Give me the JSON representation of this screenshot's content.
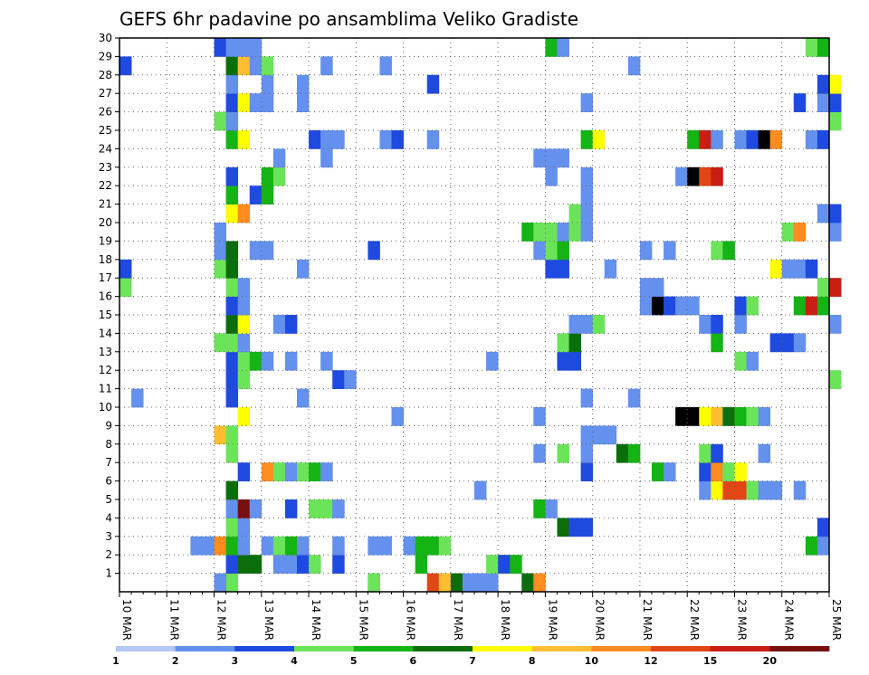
{
  "chart_data": {
    "type": "heatmap",
    "title": "GEFS 6hr padavine po ansamblima Veliko Gradiste",
    "xlabel": "",
    "ylabel": "",
    "x_ticks": [
      "10 MAR",
      "11 MAR",
      "12 MAR",
      "13 MAR",
      "14 MAR",
      "15 MAR",
      "16 MAR",
      "17 MAR",
      "18 MAR",
      "19 MAR",
      "20 MAR",
      "21 MAR",
      "22 MAR",
      "23 MAR",
      "24 MAR",
      "25 MAR"
    ],
    "y_ticks": [
      1,
      2,
      3,
      4,
      5,
      6,
      7,
      8,
      9,
      10,
      11,
      12,
      13,
      14,
      15,
      16,
      17,
      18,
      19,
      20,
      21,
      22,
      23,
      24,
      25,
      26,
      27,
      28,
      29,
      30
    ],
    "ylim": [
      0,
      30
    ],
    "time_step_hours": 6,
    "grid": true,
    "colorbar": {
      "levels": [
        1,
        2,
        3,
        4,
        5,
        6,
        7,
        8,
        10,
        12,
        15,
        20
      ],
      "colors": [
        "#b4c8f5",
        "#6490ee",
        "#1e4ae0",
        "#6ce45a",
        "#14b414",
        "#0b6e0b",
        "#ffff00",
        "#ffbe32",
        "#ff8c1e",
        "#e14614",
        "#c81e14",
        "#781010"
      ],
      "placement": "bottom"
    },
    "cells": [
      [
        9,
        0,
        2
      ],
      [
        9,
        0,
        3
      ],
      [
        8,
        0,
        1
      ],
      [
        21,
        0,
        2
      ],
      [
        21,
        0,
        3
      ],
      [
        26,
        0,
        9
      ],
      [
        27,
        0,
        7
      ],
      [
        28,
        0,
        5
      ],
      [
        29,
        0,
        1
      ],
      [
        30,
        0,
        1
      ],
      [
        31,
        0,
        1
      ],
      [
        34,
        0,
        5
      ],
      [
        35,
        0,
        8
      ],
      [
        9,
        1,
        2
      ],
      [
        10,
        1,
        5
      ],
      [
        11,
        1,
        5
      ],
      [
        13,
        1,
        1
      ],
      [
        14,
        1,
        1
      ],
      [
        15,
        1,
        2
      ],
      [
        16,
        1,
        3
      ],
      [
        18,
        1,
        2
      ],
      [
        25,
        1,
        4
      ],
      [
        31,
        1,
        3
      ],
      [
        32,
        1,
        2
      ],
      [
        33,
        1,
        4
      ],
      [
        6,
        2,
        1
      ],
      [
        7,
        2,
        1
      ],
      [
        8,
        2,
        8
      ],
      [
        9,
        2,
        4
      ],
      [
        10,
        2,
        1
      ],
      [
        12,
        2,
        1
      ],
      [
        13,
        2,
        3
      ],
      [
        14,
        2,
        4
      ],
      [
        15,
        2,
        1
      ],
      [
        18,
        2,
        1
      ],
      [
        21,
        2,
        1
      ],
      [
        22,
        2,
        1
      ],
      [
        24,
        2,
        1
      ],
      [
        25,
        2,
        4
      ],
      [
        26,
        2,
        4
      ],
      [
        27,
        2,
        3
      ],
      [
        58,
        2,
        4
      ],
      [
        59,
        2,
        1
      ],
      [
        9,
        3,
        3
      ],
      [
        10,
        3,
        1
      ],
      [
        37,
        3,
        5
      ],
      [
        38,
        3,
        2
      ],
      [
        39,
        3,
        2
      ],
      [
        59,
        3,
        2
      ],
      [
        9,
        4,
        1
      ],
      [
        10,
        4,
        11
      ],
      [
        11,
        4,
        1
      ],
      [
        14,
        4,
        2
      ],
      [
        16,
        4,
        3
      ],
      [
        17,
        4,
        3
      ],
      [
        18,
        4,
        1
      ],
      [
        35,
        4,
        4
      ],
      [
        36,
        4,
        1
      ],
      [
        9,
        5,
        5
      ],
      [
        30,
        5,
        1
      ],
      [
        49,
        5,
        1
      ],
      [
        50,
        5,
        6
      ],
      [
        51,
        5,
        9
      ],
      [
        52,
        5,
        9
      ],
      [
        53,
        5,
        3
      ],
      [
        54,
        5,
        1
      ],
      [
        55,
        5,
        1
      ],
      [
        57,
        5,
        1
      ],
      [
        10,
        6,
        2
      ],
      [
        12,
        6,
        8
      ],
      [
        13,
        6,
        3
      ],
      [
        14,
        6,
        1
      ],
      [
        15,
        6,
        3
      ],
      [
        16,
        6,
        4
      ],
      [
        17,
        6,
        1
      ],
      [
        39,
        6,
        2
      ],
      [
        45,
        6,
        4
      ],
      [
        46,
        6,
        1
      ],
      [
        49,
        6,
        2
      ],
      [
        50,
        6,
        8
      ],
      [
        51,
        6,
        3
      ],
      [
        52,
        6,
        6
      ],
      [
        9,
        7,
        3
      ],
      [
        35,
        7,
        1
      ],
      [
        37,
        7,
        3
      ],
      [
        39,
        7,
        1
      ],
      [
        42,
        7,
        5
      ],
      [
        43,
        7,
        4
      ],
      [
        49,
        7,
        3
      ],
      [
        50,
        7,
        2
      ],
      [
        54,
        7,
        1
      ],
      [
        8,
        8,
        7
      ],
      [
        9,
        8,
        3
      ],
      [
        39,
        8,
        1
      ],
      [
        40,
        8,
        1
      ],
      [
        41,
        8,
        1
      ],
      [
        10,
        9,
        6
      ],
      [
        23,
        9,
        1
      ],
      [
        35,
        9,
        1
      ],
      [
        47,
        9,
        12
      ],
      [
        48,
        9,
        12
      ],
      [
        49,
        9,
        6
      ],
      [
        50,
        9,
        7
      ],
      [
        51,
        9,
        5
      ],
      [
        52,
        9,
        4
      ],
      [
        53,
        9,
        3
      ],
      [
        54,
        9,
        1
      ],
      [
        1,
        10,
        1
      ],
      [
        9,
        10,
        2
      ],
      [
        15,
        10,
        1
      ],
      [
        39,
        10,
        1
      ],
      [
        43,
        10,
        1
      ],
      [
        9,
        11,
        2
      ],
      [
        10,
        11,
        3
      ],
      [
        18,
        11,
        2
      ],
      [
        19,
        11,
        1
      ],
      [
        60,
        11,
        3
      ],
      [
        9,
        12,
        2
      ],
      [
        10,
        12,
        3
      ],
      [
        11,
        12,
        4
      ],
      [
        12,
        12,
        1
      ],
      [
        14,
        12,
        1
      ],
      [
        17,
        12,
        1
      ],
      [
        31,
        12,
        1
      ],
      [
        37,
        12,
        2
      ],
      [
        38,
        12,
        2
      ],
      [
        52,
        12,
        3
      ],
      [
        53,
        12,
        1
      ],
      [
        8,
        13,
        3
      ],
      [
        9,
        13,
        3
      ],
      [
        10,
        13,
        1
      ],
      [
        37,
        13,
        3
      ],
      [
        38,
        13,
        5
      ],
      [
        50,
        13,
        4
      ],
      [
        55,
        13,
        2
      ],
      [
        56,
        13,
        2
      ],
      [
        57,
        13,
        1
      ],
      [
        9,
        14,
        5
      ],
      [
        10,
        14,
        6
      ],
      [
        13,
        14,
        1
      ],
      [
        14,
        14,
        2
      ],
      [
        38,
        14,
        1
      ],
      [
        39,
        14,
        1
      ],
      [
        40,
        14,
        3
      ],
      [
        49,
        14,
        1
      ],
      [
        50,
        14,
        2
      ],
      [
        52,
        14,
        1
      ],
      [
        60,
        14,
        1
      ],
      [
        9,
        15,
        2
      ],
      [
        10,
        15,
        1
      ],
      [
        44,
        15,
        1
      ],
      [
        45,
        15,
        12
      ],
      [
        46,
        15,
        2
      ],
      [
        47,
        15,
        1
      ],
      [
        48,
        15,
        1
      ],
      [
        52,
        15,
        2
      ],
      [
        53,
        15,
        3
      ],
      [
        57,
        15,
        4
      ],
      [
        58,
        15,
        10
      ],
      [
        59,
        15,
        4
      ],
      [
        0,
        16,
        3
      ],
      [
        9,
        16,
        3
      ],
      [
        10,
        16,
        1
      ],
      [
        44,
        16,
        1
      ],
      [
        45,
        16,
        1
      ],
      [
        59,
        16,
        3
      ],
      [
        60,
        16,
        10
      ],
      [
        0,
        17,
        2
      ],
      [
        8,
        17,
        3
      ],
      [
        9,
        17,
        5
      ],
      [
        15,
        17,
        1
      ],
      [
        36,
        17,
        2
      ],
      [
        37,
        17,
        2
      ],
      [
        41,
        17,
        1
      ],
      [
        55,
        17,
        6
      ],
      [
        56,
        17,
        1
      ],
      [
        57,
        17,
        1
      ],
      [
        58,
        17,
        2
      ],
      [
        8,
        18,
        1
      ],
      [
        9,
        18,
        5
      ],
      [
        11,
        18,
        1
      ],
      [
        12,
        18,
        1
      ],
      [
        21,
        18,
        2
      ],
      [
        35,
        18,
        1
      ],
      [
        36,
        18,
        3
      ],
      [
        37,
        18,
        4
      ],
      [
        44,
        18,
        1
      ],
      [
        46,
        18,
        1
      ],
      [
        50,
        18,
        3
      ],
      [
        51,
        18,
        4
      ],
      [
        8,
        19,
        1
      ],
      [
        34,
        19,
        4
      ],
      [
        35,
        19,
        3
      ],
      [
        36,
        19,
        3
      ],
      [
        37,
        19,
        1
      ],
      [
        38,
        19,
        3
      ],
      [
        39,
        19,
        1
      ],
      [
        56,
        19,
        3
      ],
      [
        57,
        19,
        8
      ],
      [
        60,
        19,
        1
      ],
      [
        9,
        20,
        6
      ],
      [
        10,
        20,
        8
      ],
      [
        38,
        20,
        3
      ],
      [
        39,
        20,
        1
      ],
      [
        59,
        20,
        1
      ],
      [
        60,
        20,
        2
      ],
      [
        9,
        21,
        4
      ],
      [
        11,
        21,
        2
      ],
      [
        12,
        21,
        4
      ],
      [
        39,
        21,
        1
      ],
      [
        9,
        22,
        2
      ],
      [
        12,
        22,
        4
      ],
      [
        13,
        22,
        3
      ],
      [
        36,
        22,
        1
      ],
      [
        39,
        22,
        1
      ],
      [
        47,
        22,
        1
      ],
      [
        48,
        22,
        12
      ],
      [
        49,
        22,
        9
      ],
      [
        50,
        22,
        10
      ],
      [
        13,
        23,
        1
      ],
      [
        17,
        23,
        1
      ],
      [
        35,
        23,
        1
      ],
      [
        36,
        23,
        1
      ],
      [
        37,
        23,
        1
      ],
      [
        9,
        24,
        4
      ],
      [
        10,
        24,
        6
      ],
      [
        16,
        24,
        2
      ],
      [
        17,
        24,
        1
      ],
      [
        18,
        24,
        1
      ],
      [
        22,
        24,
        1
      ],
      [
        23,
        24,
        2
      ],
      [
        26,
        24,
        1
      ],
      [
        39,
        24,
        4
      ],
      [
        40,
        24,
        6
      ],
      [
        48,
        24,
        4
      ],
      [
        49,
        24,
        10
      ],
      [
        50,
        24,
        1
      ],
      [
        52,
        24,
        1
      ],
      [
        53,
        24,
        2
      ],
      [
        54,
        24,
        12
      ],
      [
        55,
        24,
        8
      ],
      [
        58,
        24,
        1
      ],
      [
        59,
        24,
        2
      ],
      [
        8,
        25,
        3
      ],
      [
        9,
        25,
        1
      ],
      [
        60,
        25,
        3
      ],
      [
        9,
        26,
        2
      ],
      [
        10,
        26,
        6
      ],
      [
        11,
        26,
        1
      ],
      [
        12,
        26,
        1
      ],
      [
        15,
        26,
        1
      ],
      [
        39,
        26,
        1
      ],
      [
        57,
        26,
        2
      ],
      [
        59,
        26,
        1
      ],
      [
        60,
        26,
        2
      ],
      [
        9,
        27,
        1
      ],
      [
        12,
        27,
        1
      ],
      [
        15,
        27,
        1
      ],
      [
        26,
        27,
        2
      ],
      [
        60,
        27,
        6
      ],
      [
        59,
        27,
        2
      ],
      [
        0,
        28,
        2
      ],
      [
        9,
        28,
        5
      ],
      [
        10,
        28,
        7
      ],
      [
        11,
        28,
        1
      ],
      [
        12,
        28,
        3
      ],
      [
        17,
        28,
        1
      ],
      [
        22,
        28,
        1
      ],
      [
        43,
        28,
        1
      ],
      [
        8,
        29,
        2
      ],
      [
        9,
        29,
        1
      ],
      [
        10,
        29,
        1
      ],
      [
        11,
        29,
        1
      ],
      [
        36,
        29,
        4
      ],
      [
        37,
        29,
        1
      ],
      [
        58,
        29,
        3
      ],
      [
        59,
        29,
        4
      ]
    ]
  }
}
